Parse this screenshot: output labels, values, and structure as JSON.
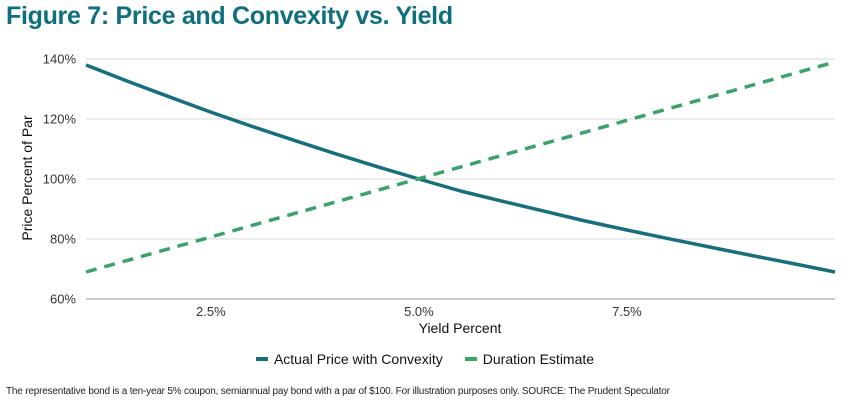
{
  "chart_data": {
    "type": "line",
    "title": "Figure 7: Price and Convexity vs. Yield",
    "xlabel": "Yield Percent",
    "ylabel": "Price Percent of Par",
    "xlim": [
      1.0,
      10.0
    ],
    "ylim": [
      60,
      140
    ],
    "yticks": [
      60,
      80,
      100,
      120,
      140
    ],
    "ytick_labels": [
      "60%",
      "80%",
      "100%",
      "120%",
      "140%"
    ],
    "xticks": [
      2.5,
      5.0,
      7.5
    ],
    "xtick_labels": [
      "2.5%",
      "5.0%",
      "7.5%"
    ],
    "grid": "horizontal",
    "legend_position": "bottom-center",
    "series": [
      {
        "name": "Actual Price with Convexity",
        "style": "solid",
        "color": "#176e7d",
        "x": [
          1.0,
          1.5,
          2.0,
          2.5,
          3.0,
          3.5,
          4.0,
          4.5,
          5.0,
          5.5,
          6.0,
          6.5,
          7.0,
          7.5,
          8.0,
          8.5,
          9.0,
          9.5,
          10.0
        ],
        "y": [
          138.0,
          132.6,
          127.4,
          122.3,
          117.5,
          112.9,
          108.4,
          104.1,
          100.0,
          96.0,
          92.6,
          89.3,
          86.0,
          83.0,
          80.1,
          77.3,
          74.5,
          71.8,
          69.0
        ]
      },
      {
        "name": "Duration Estimate",
        "style": "dashed",
        "color": "#3aa36a",
        "x": [
          1.0,
          10.0
        ],
        "y": [
          69.0,
          139.0
        ]
      }
    ]
  },
  "footnote": "The representative bond is a ten-year 5% coupon, semiannual pay bond with a par of $100. For illustration purposes only. SOURCE: The Prudent Speculator"
}
